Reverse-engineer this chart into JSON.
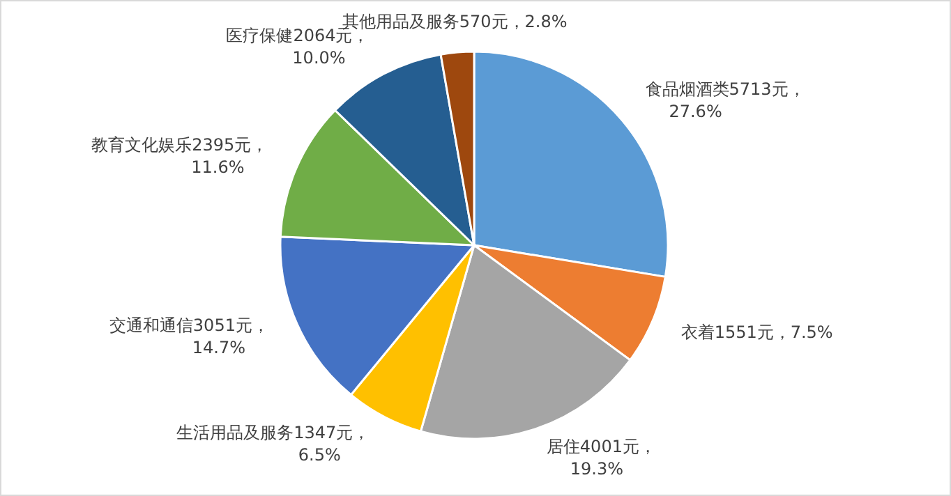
{
  "chart_data": {
    "type": "pie",
    "categories": [
      "食品烟酒类",
      "衣着",
      "居住",
      "生活用品及服务",
      "交通和通信",
      "教育文化娱乐",
      "医疗保健",
      "其他用品及服务"
    ],
    "values": [
      5713,
      1551,
      4001,
      1347,
      3051,
      2395,
      2064,
      570
    ],
    "value_labels": [
      "5713元，\n27.6%",
      "1551元，7.5%",
      "4001元，\n19.3%",
      "1347元，\n6.5%",
      "3051元，\n14.7%",
      "2395元，\n11.6%",
      "2064元，\n10.0%",
      "570元，2.8%"
    ],
    "colors": [
      "#5b9bd5",
      "#ed7d31",
      "#a5a5a5",
      "#ffc000",
      "#4472c4",
      "#70ad47",
      "#255e91",
      "#9e480e"
    ]
  }
}
